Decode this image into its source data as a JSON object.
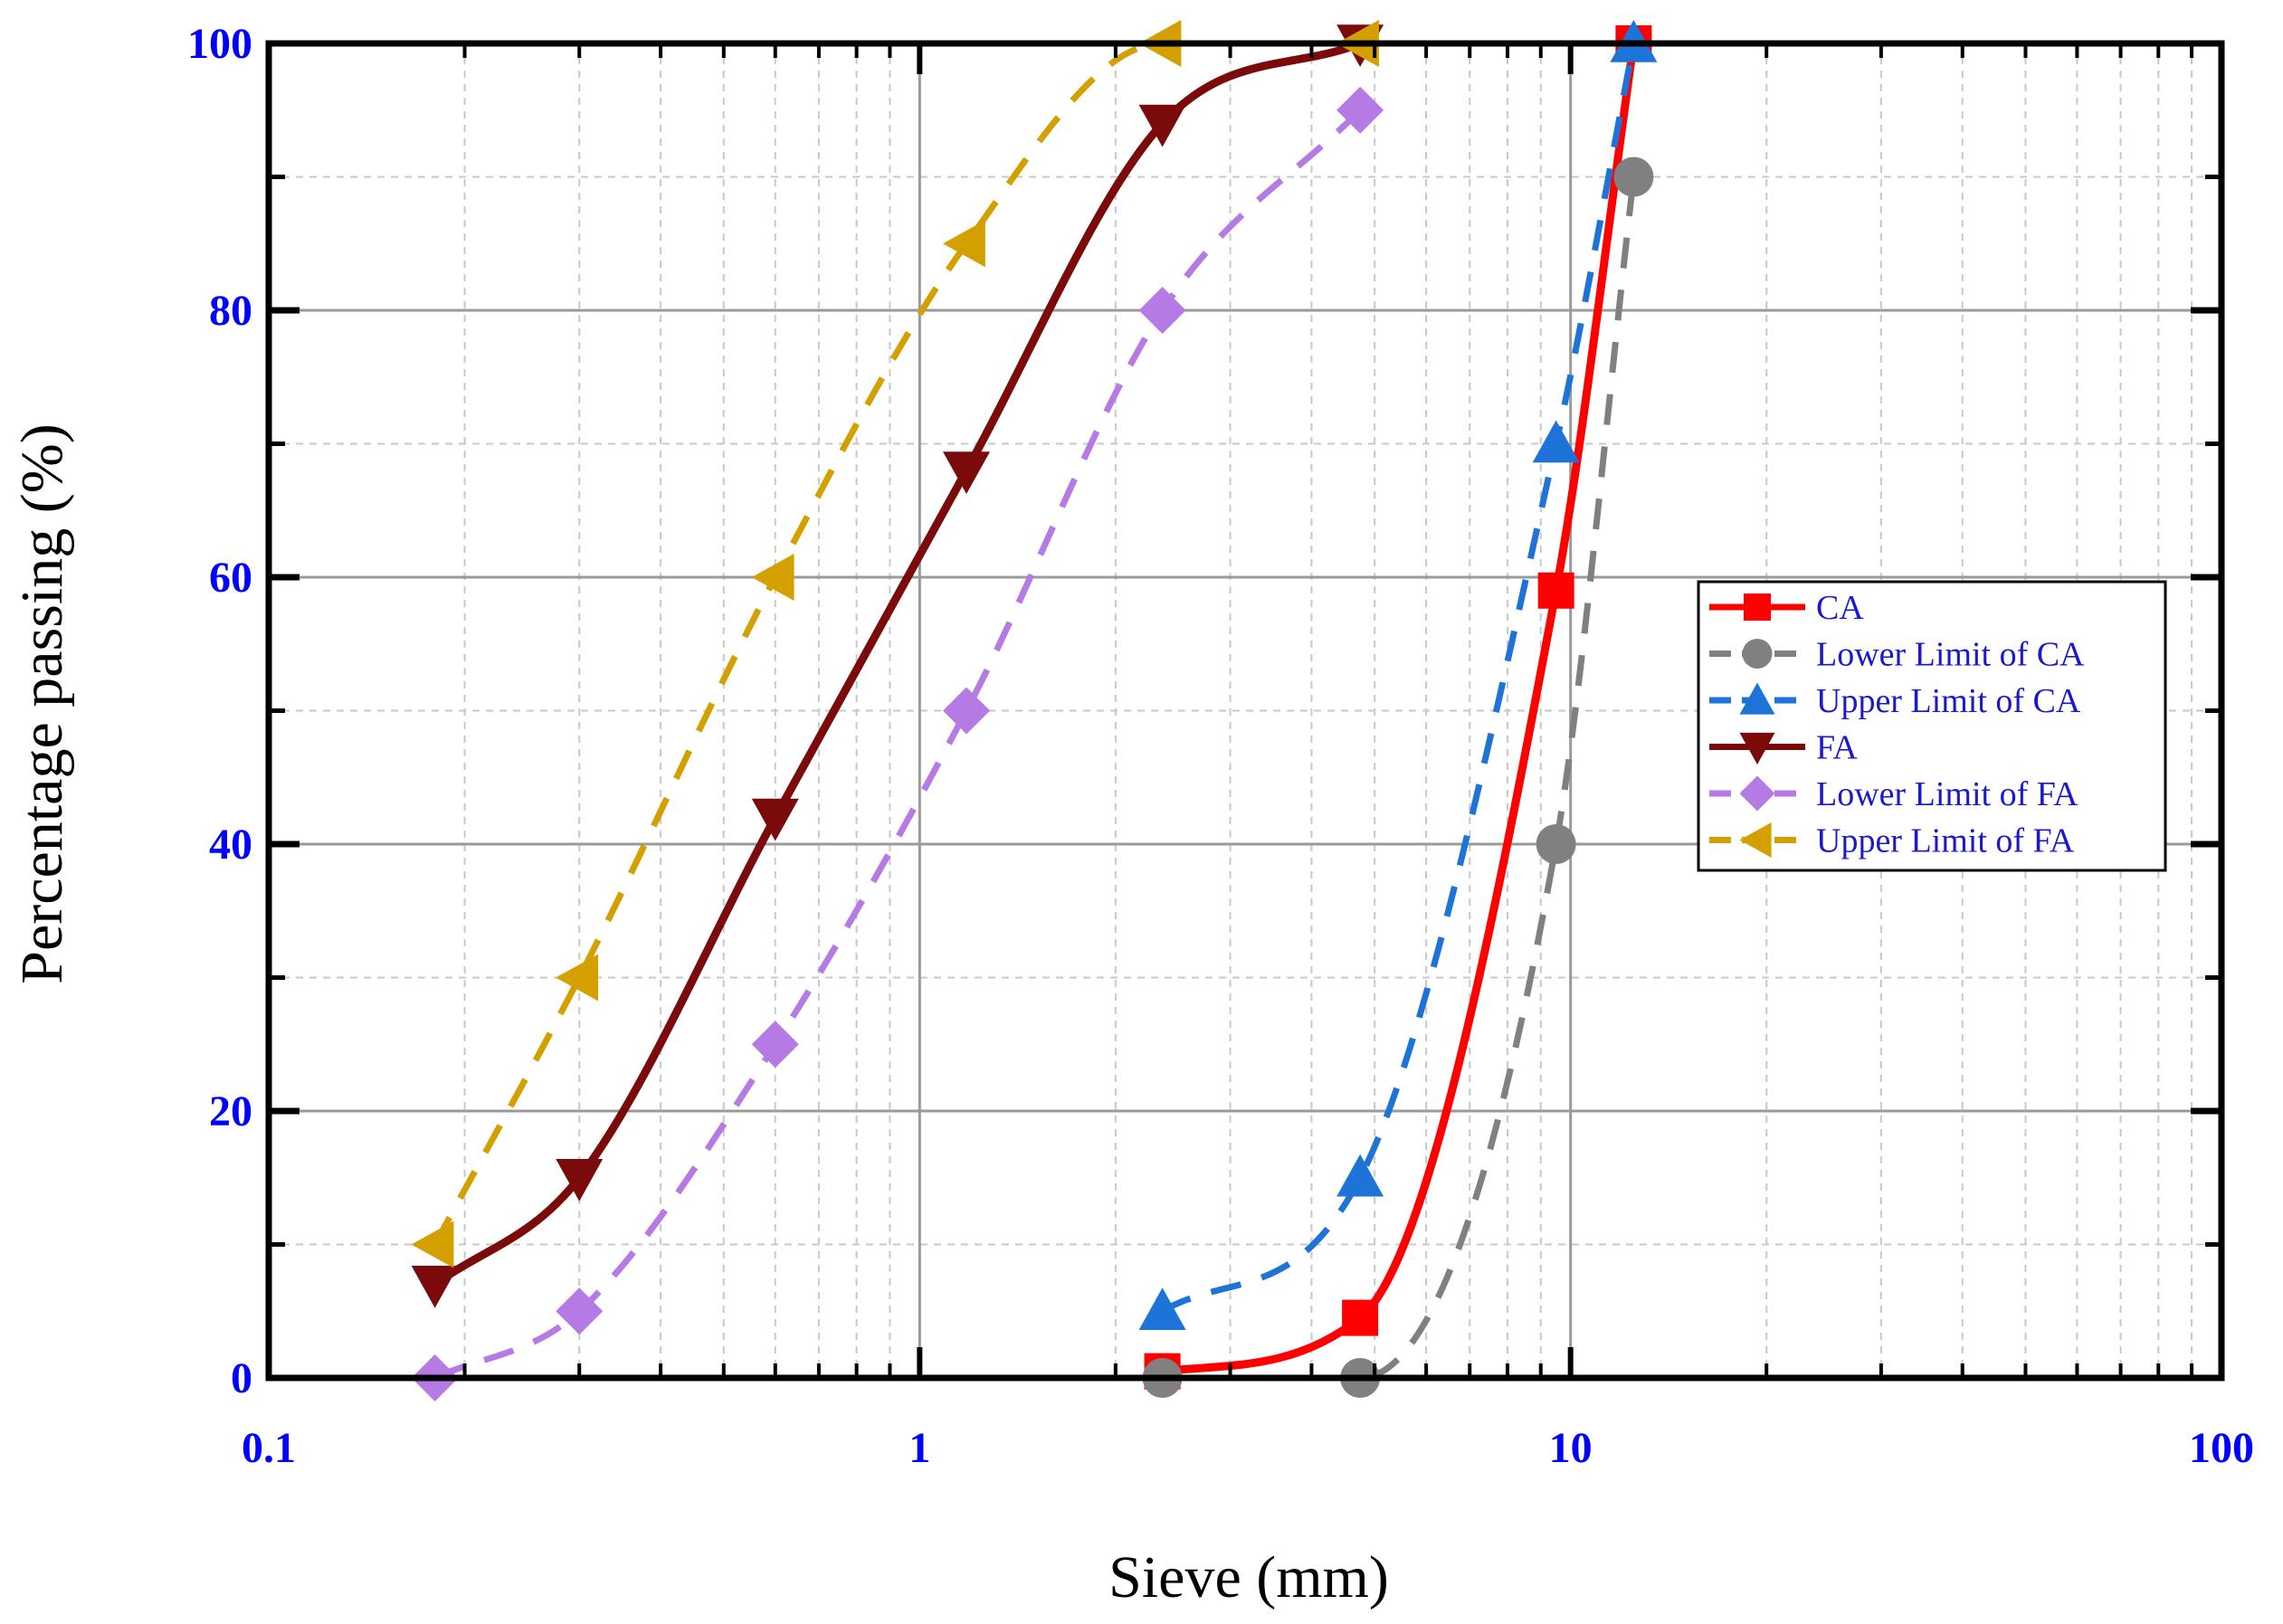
{
  "chart_data": {
    "type": "line",
    "xscale": "log",
    "xlabel": "Sieve (mm)",
    "ylabel": "Percentage passing (%)",
    "xlim": [
      0.1,
      100
    ],
    "ylim": [
      0,
      100
    ],
    "xticks": [
      0.1,
      1,
      10,
      100
    ],
    "xtick_labels": [
      "0.1",
      "1",
      "10",
      "100"
    ],
    "yticks": [
      0,
      20,
      40,
      60,
      80,
      100
    ],
    "ytick_labels": [
      "0",
      "20",
      "40",
      "60",
      "80",
      "100"
    ],
    "grid": true,
    "legend_position": "center-right",
    "series": [
      {
        "name": "CA",
        "color": "#ff0000",
        "dash": "solid",
        "marker": "square",
        "x": [
          2.36,
          4.75,
          9.5,
          12.5
        ],
        "y": [
          0.5,
          4.5,
          59,
          100
        ]
      },
      {
        "name": "Lower Limit of CA",
        "color": "#808080",
        "dash": "dashed",
        "marker": "circle",
        "x": [
          2.36,
          4.75,
          9.5,
          12.5
        ],
        "y": [
          0,
          0,
          40,
          90
        ]
      },
      {
        "name": "Upper Limit of CA",
        "color": "#1e73d8",
        "dash": "dashed",
        "marker": "triangle-up",
        "x": [
          2.36,
          4.75,
          9.5,
          12.5
        ],
        "y": [
          5,
          15,
          70,
          100
        ]
      },
      {
        "name": "FA",
        "color": "#7b0a0a",
        "dash": "solid",
        "marker": "triangle-down",
        "x": [
          0.18,
          0.3,
          0.6,
          1.18,
          2.36,
          4.75
        ],
        "y": [
          7,
          15,
          42,
          68,
          94,
          100
        ]
      },
      {
        "name": "Lower Limit of FA",
        "color": "#b57ae3",
        "dash": "dashed",
        "marker": "diamond",
        "x": [
          0.18,
          0.3,
          0.6,
          1.18,
          2.36,
          4.75
        ],
        "y": [
          0,
          5,
          25,
          50,
          80,
          95
        ]
      },
      {
        "name": "Upper Limit of FA",
        "color": "#d4a000",
        "dash": "dashed",
        "marker": "triangle-left",
        "x": [
          0.18,
          0.3,
          0.6,
          1.18,
          2.36,
          4.75
        ],
        "y": [
          10,
          30,
          60,
          85,
          100,
          100
        ]
      }
    ]
  },
  "colors": {
    "tick_label": "#0000ff",
    "axis_title": "#000000",
    "major_grid": "#9a9a9a",
    "minor_grid": "#c8c8c8"
  }
}
